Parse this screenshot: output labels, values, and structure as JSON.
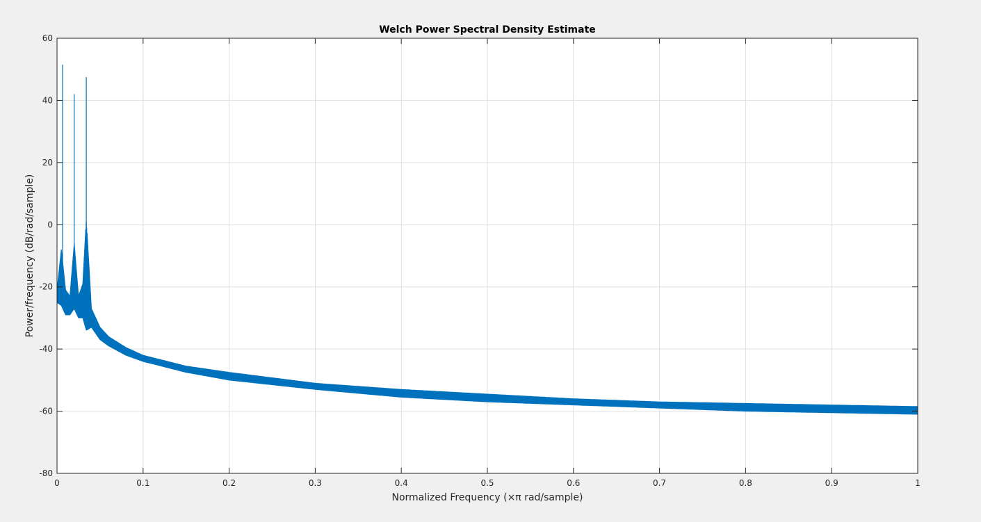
{
  "chart_data": {
    "type": "line",
    "title": "Welch Power Spectral Density Estimate",
    "xlabel": "Normalized Frequency  (×π rad/sample)",
    "ylabel": "Power/frequency (dB/rad/sample)",
    "xlim": [
      0,
      1
    ],
    "ylim": [
      -80,
      60
    ],
    "xticks": [
      0,
      0.1,
      0.2,
      0.3,
      0.4,
      0.5,
      0.6,
      0.7,
      0.8,
      0.9,
      1
    ],
    "xtick_labels": [
      "0",
      "0.1",
      "0.2",
      "0.3",
      "0.4",
      "0.5",
      "0.6",
      "0.7",
      "0.8",
      "0.9",
      "1"
    ],
    "yticks": [
      -80,
      -60,
      -40,
      -20,
      0,
      20,
      40,
      60
    ],
    "ytick_labels": [
      "-80",
      "-60",
      "-40",
      "-20",
      "0",
      "20",
      "40",
      "60"
    ],
    "grid": true,
    "legend": false,
    "color": "#0072bd",
    "series": [
      {
        "peaks": [
          {
            "x": 0.0065,
            "y": 51.5
          },
          {
            "x": 0.02,
            "y": 42
          },
          {
            "x": 0.034,
            "y": 47.5
          }
        ],
        "envelope_x": [
          0,
          0.005,
          0.01,
          0.015,
          0.02,
          0.025,
          0.03,
          0.034,
          0.04,
          0.05,
          0.06,
          0.08,
          0.1,
          0.15,
          0.2,
          0.3,
          0.4,
          0.5,
          0.6,
          0.7,
          0.8,
          0.9,
          1.0
        ],
        "envelope_upper": [
          -21,
          -8,
          -21,
          -23,
          -6,
          -23,
          -19,
          2,
          -27,
          -33,
          -36,
          -39.5,
          -42,
          -45.5,
          -47.5,
          -51,
          -53,
          -54.5,
          -56,
          -57,
          -57.5,
          -58,
          -58.5
        ],
        "envelope_lower": [
          -25,
          -26,
          -29,
          -29,
          -27,
          -30,
          -30,
          -34,
          -33,
          -37,
          -39,
          -42,
          -44,
          -47.5,
          -50,
          -53,
          -55.5,
          -57,
          -58,
          -59,
          -60,
          -60.5,
          -61
        ]
      }
    ]
  }
}
